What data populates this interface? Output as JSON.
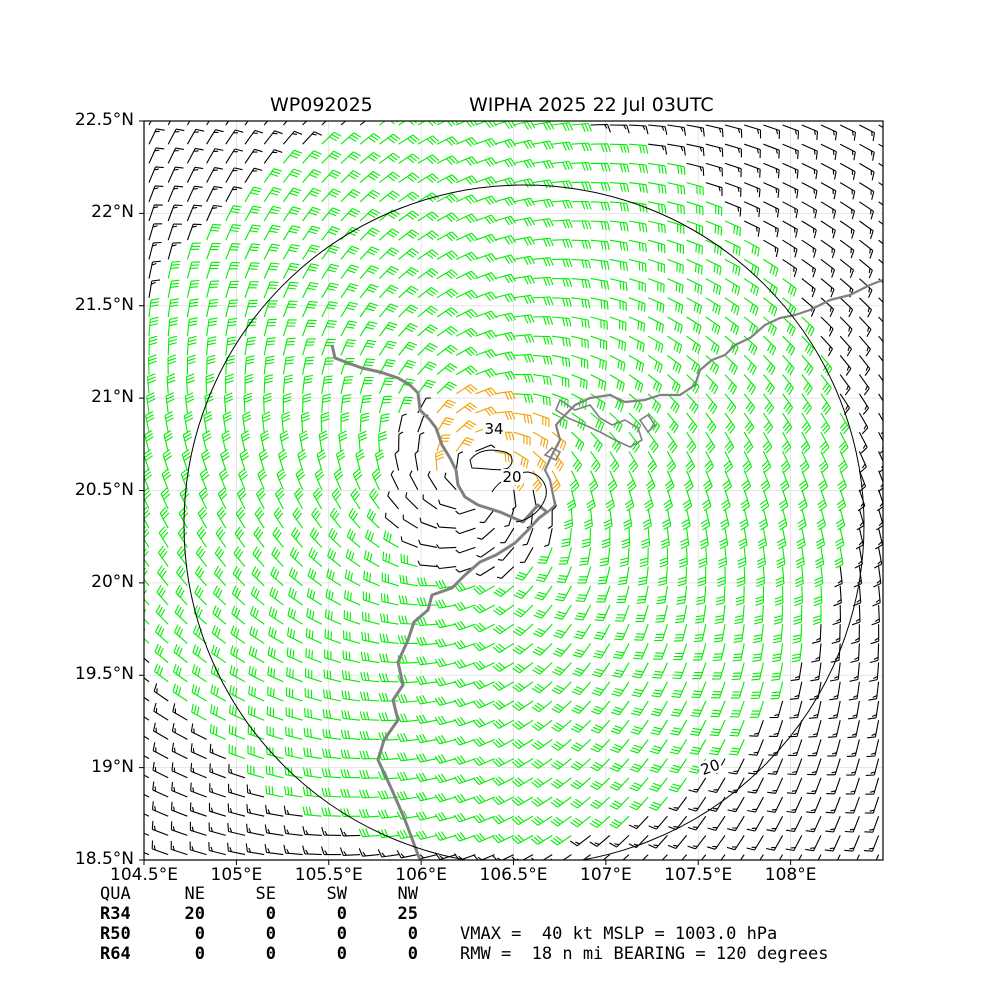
{
  "title": {
    "storm_id": "WP092025",
    "storm_info": "WIPHA 2025 22 Jul 03UTC"
  },
  "map": {
    "lon_range": [
      104.5,
      108.5
    ],
    "lat_range": [
      18.5,
      22.5
    ],
    "lat_ticks": [
      "18.5°N",
      "19°N",
      "19.5°N",
      "20°N",
      "20.5°N",
      "21°N",
      "21.5°N",
      "22°N",
      "22.5°N"
    ],
    "lon_ticks": [
      "104.5°E",
      "105°E",
      "105.5°E",
      "106°E",
      "106.5°E",
      "107°E",
      "107.5°E",
      "108°E"
    ],
    "center": {
      "lon": 106.3,
      "lat": 20.55
    },
    "colors": {
      "coastline": "#808080",
      "barb_calm": "#000000",
      "barb_gale": "#00ee00",
      "barb_storm": "#f0a000",
      "contour": "#000000"
    },
    "contours": [
      {
        "label": "20",
        "kind": "outer-ring"
      },
      {
        "label": "20",
        "kind": "inner"
      },
      {
        "label": "34",
        "kind": "inner"
      }
    ]
  },
  "wind_radii_table": {
    "headers": [
      "QUA",
      "NE",
      "SE",
      "SW",
      "NW"
    ],
    "rows": [
      {
        "label": "R34",
        "values": [
          "20",
          "0",
          "0",
          "25"
        ]
      },
      {
        "label": "R50",
        "values": [
          "0",
          "0",
          "0",
          "0"
        ]
      },
      {
        "label": "R64",
        "values": [
          "0",
          "0",
          "0",
          "0"
        ]
      }
    ]
  },
  "storm_params": {
    "line1": "VMAX =  40 kt MSLP = 1003.0 hPa",
    "line2": "RMW =  18 n mi BEARING = 120 degrees"
  }
}
